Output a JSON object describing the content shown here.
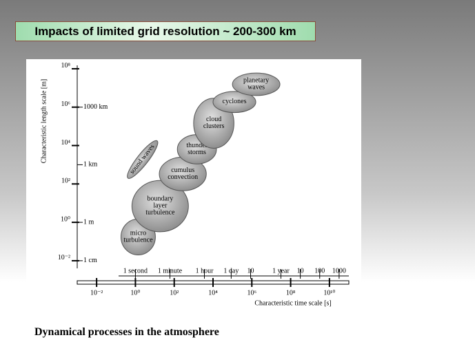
{
  "slide": {
    "title": "Impacts of limited grid resolution ~ 200-300 km",
    "caption": "Dynamical processes in the atmosphere"
  },
  "chart_data": {
    "type": "ellipse",
    "log_scale": true,
    "xlabel": "Characteristic time scale [s]",
    "ylabel": "Characteristic length scale [m]",
    "xlim": [
      0.001,
      100000000000
    ],
    "ylim": [
      0.004,
      150000000
    ],
    "xticks": [
      {
        "value": 0.01,
        "label": "10⁻²"
      },
      {
        "value": 1,
        "label": "10⁰"
      },
      {
        "value": 100,
        "label": "10²"
      },
      {
        "value": 10000,
        "label": "10⁴"
      },
      {
        "value": 1000000,
        "label": "10⁶"
      },
      {
        "value": 100000000,
        "label": "10⁸"
      },
      {
        "value": 10000000000,
        "label": "10¹⁰"
      }
    ],
    "yticks": [
      {
        "value": 0.01,
        "label": "10⁻²"
      },
      {
        "value": 1,
        "label": "10⁰"
      },
      {
        "value": 100,
        "label": "10²"
      },
      {
        "value": 10000,
        "label": "10⁴"
      },
      {
        "value": 1000000,
        "label": "10⁶"
      },
      {
        "value": 100000000,
        "label": "10⁸"
      }
    ],
    "time_marks": [
      {
        "value": 1,
        "label": "1 second"
      },
      {
        "value": 60,
        "label": "1 minute"
      },
      {
        "value": 3600,
        "label": "1 hour"
      },
      {
        "value": 86400,
        "label": "1 day"
      },
      {
        "value": 864000,
        "label": "10"
      },
      {
        "value": 31500000,
        "label": "1 year"
      },
      {
        "value": 315000000,
        "label": "10"
      },
      {
        "value": 3150000000,
        "label": "100"
      },
      {
        "value": 31500000000,
        "label": "1000"
      }
    ],
    "length_marks": [
      {
        "value": 1000000,
        "label": "1000 km"
      },
      {
        "value": 1000,
        "label": "1 km"
      },
      {
        "value": 1,
        "label": "1 m"
      },
      {
        "value": 0.01,
        "label": "1 cm"
      }
    ],
    "color": "#b8b8b8",
    "processes": [
      {
        "name": "micro\nturbulence",
        "x": [
          0.18,
          10.7
        ],
        "y": [
          0.02,
          1.5
        ]
      },
      {
        "name": "boundary\nlayer\nturbulence",
        "x": [
          0.66,
          540
        ],
        "y": [
          0.32,
          151
        ]
      },
      {
        "name": "cumulus\nconvection",
        "x": [
          17,
          4500
        ],
        "y": [
          44,
          2500
        ]
      },
      {
        "name": "thunder\nstorms",
        "x": [
          145,
          15000
        ],
        "y": [
          1100,
          37000
        ]
      },
      {
        "name": "cloud\nclusters",
        "x": [
          1000,
          120000
        ],
        "y": [
          7200,
          2900000
        ]
      },
      {
        "name": "cyclones",
        "x": [
          10000,
          1600000
        ],
        "y": [
          520000,
          6600000
        ]
      },
      {
        "name": "planetary\nwaves",
        "x": [
          100000,
          28000000
        ],
        "y": [
          4000000,
          60000000
        ]
      },
      {
        "name": "sound waves",
        "x": [
          0.32,
          17
        ],
        "y": [
          250,
          14000
        ],
        "angle": -52
      }
    ]
  }
}
